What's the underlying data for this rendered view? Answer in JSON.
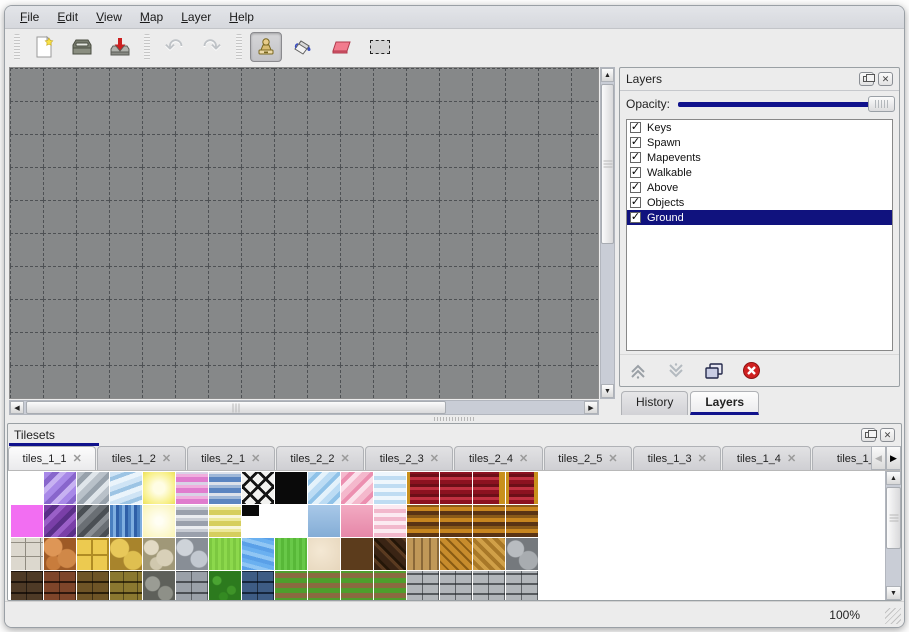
{
  "menu_bar": {
    "items": [
      {
        "label": "File"
      },
      {
        "label": "Edit"
      },
      {
        "label": "View"
      },
      {
        "label": "Map"
      },
      {
        "label": "Layer"
      },
      {
        "label": "Help"
      }
    ]
  },
  "toolbar": {
    "buttons": [
      {
        "icon": "new-file-icon"
      },
      {
        "icon": "open-icon"
      },
      {
        "icon": "save-icon"
      },
      {
        "icon": "undo-icon",
        "glyph": "↶"
      },
      {
        "icon": "redo-icon",
        "glyph": "↷"
      },
      {
        "icon": "stamp-tool-icon",
        "selected": true
      },
      {
        "icon": "fill-tool-icon"
      },
      {
        "icon": "eraser-tool-icon"
      },
      {
        "icon": "select-tool-icon"
      }
    ]
  },
  "canvas": {
    "grid_cols": 19,
    "grid_rows": 11,
    "background": "#868889",
    "grid_color": "#4e5154"
  },
  "layers_panel": {
    "title": "Layers",
    "opacity_label": "Opacity:",
    "opacity_value": 100,
    "accent_color": "#10128c",
    "layers": [
      {
        "name": "Keys",
        "checked": true,
        "selected": false
      },
      {
        "name": "Spawn",
        "checked": true,
        "selected": false
      },
      {
        "name": "Mapevents",
        "checked": true,
        "selected": false
      },
      {
        "name": "Walkable",
        "checked": true,
        "selected": false
      },
      {
        "name": "Above",
        "checked": true,
        "selected": false
      },
      {
        "name": "Objects",
        "checked": true,
        "selected": false
      },
      {
        "name": "Ground",
        "checked": true,
        "selected": true
      }
    ],
    "toolbar_icons": [
      "move-layer-up-icon",
      "move-layer-down-icon",
      "duplicate-layer-icon",
      "delete-layer-icon"
    ],
    "tabs": [
      {
        "label": "History",
        "active": false
      },
      {
        "label": "Layers",
        "active": true
      }
    ]
  },
  "tilesets_panel": {
    "title": "Tilesets",
    "tabs": [
      {
        "label": "tiles_1_1",
        "active": true
      },
      {
        "label": "tiles_1_2",
        "active": false
      },
      {
        "label": "tiles_2_1",
        "active": false
      },
      {
        "label": "tiles_2_2",
        "active": false
      },
      {
        "label": "tiles_2_3",
        "active": false
      },
      {
        "label": "tiles_2_4",
        "active": false
      },
      {
        "label": "tiles_2_5",
        "active": false
      },
      {
        "label": "tiles_1_3",
        "active": false
      },
      {
        "label": "tiles_1_4",
        "active": false
      },
      {
        "label": "tiles_1_",
        "active": false,
        "truncated": true
      }
    ]
  },
  "tile_palette": {
    "rows": [
      [
        {
          "name": "empty-white",
          "bg": "#ffffff"
        },
        {
          "name": "purple-glass",
          "bg": "repeating-linear-gradient(135deg,#a889e8 0 6px,#8866cc 6px 11px,#c7b2f2 11px 16px)"
        },
        {
          "name": "gray-glass",
          "bg": "repeating-linear-gradient(135deg,#b9c1c9 0 6px,#97a1ab 6px 11px,#dfe5ea 11px 16px)"
        },
        {
          "name": "blue-glass",
          "bg": "repeating-linear-gradient(160deg,#cfe4f5 0 5px,#9cc4e4 5px 9px,#eaf4fb 9px 14px)"
        },
        {
          "name": "yellow-glow",
          "bg": "radial-gradient(circle,#fffde4 25%,#f7ef84 75%,#ece05a 100%)"
        },
        {
          "name": "pink-stripes",
          "bg": "repeating-linear-gradient(0deg,#e07cce 0 5px,#f0aede 5px 8px,#d9d2e6 8px 11px)"
        },
        {
          "name": "blue-stripes",
          "bg": "repeating-linear-gradient(0deg,#5b85c0 0 5px,#9fb8d8 5px 8px,#dde2ea 8px 11px)"
        },
        {
          "name": "black-lattice",
          "bg": "repeating-linear-gradient(45deg,#141414 0 3px,transparent 3px 11px),repeating-linear-gradient(-45deg,#141414 0 3px,transparent 3px 11px)",
          "base": "#f2f2f0"
        },
        {
          "name": "solid-black",
          "bg": "#0a0a0a"
        },
        {
          "name": "lightblue-glass",
          "bg": "repeating-linear-gradient(135deg,#bcdcf4 0 6px,#8fc2e8 6px 10px,#e4f2fb 10px 15px)"
        },
        {
          "name": "pink-glass",
          "bg": "repeating-linear-gradient(135deg,#f4b8cc 0 6px,#ec8fb0 6px 10px,#fbe0ea 10px 15px)"
        },
        {
          "name": "blue-waves",
          "bg": "repeating-linear-gradient(0deg,#bfdcf2 0 4px,#eef6fc 4px 8px)"
        },
        {
          "name": "red-curtain",
          "bg": "linear-gradient(90deg,#c8901c 0 3px,transparent 3px),repeating-linear-gradient(0deg,#8c1220 0 4px,#c03040 4px 7px,#6c0f18 7px 10px)"
        },
        {
          "name": "red-curtain",
          "bg": "repeating-linear-gradient(0deg,#8c1220 0 4px,#c03040 4px 7px,#6c0f18 7px 10px)"
        },
        {
          "name": "red-curtain",
          "bg": "linear-gradient(90deg,transparent 0 26px,#c8901c 26px),repeating-linear-gradient(0deg,#8c1220 0 4px,#c03040 4px 7px,#6c0f18 7px 10px)"
        },
        {
          "name": "red-curtain",
          "bg": "linear-gradient(90deg,#c8901c 0 3px,transparent 3px 28px,#c8901c 28px),repeating-linear-gradient(0deg,#8c1220 0 4px,#c03040 4px 7px,#6c0f18 7px 10px)"
        }
      ],
      [
        {
          "name": "magenta",
          "bg": "#f26ef2"
        },
        {
          "name": "dark-purple-glass",
          "bg": "repeating-linear-gradient(135deg,#7a3fa8 0 6px,#5a2f88 6px 11px,#9a5fc8 11px 16px)"
        },
        {
          "name": "dark-gray-glass",
          "bg": "repeating-linear-gradient(135deg,#6a6f74 0 6px,#4a4f54 6px 11px,#8a8f94 11px 16px)"
        },
        {
          "name": "dark-blue-water",
          "bg": "repeating-linear-gradient(90deg,#4a7fc0 0 3px,#7faee0 3px 6px,#2f5fa8 6px 9px)"
        },
        {
          "name": "pale-yellow-glow",
          "bg": "radial-gradient(circle,#fffef4 15%,#faf4b4 100%)"
        },
        {
          "name": "gray-stripes",
          "bg": "repeating-linear-gradient(0deg,#9aa0ac 0 5px,#c8ccd4 5px 8px,#eaecf0 8px 11px)"
        },
        {
          "name": "yellow-stripes",
          "bg": "repeating-linear-gradient(0deg,#d6ce5e 0 5px,#ece89a 5px 8px,#f8f6da 8px 11px)"
        },
        {
          "name": "black-corner",
          "bg": "linear-gradient(#0a0a0a,#0a0a0a) 0 0/17px 11px no-repeat",
          "base": "#ffffff"
        },
        {
          "name": "empty-white",
          "bg": "#ffffff"
        },
        {
          "name": "solid-blue",
          "bg": "linear-gradient(180deg,#a8c8e8,#84add6)"
        },
        {
          "name": "solid-pink",
          "bg": "linear-gradient(180deg,#f2aac2,#e687a8)"
        },
        {
          "name": "pink-waves",
          "bg": "repeating-linear-gradient(0deg,#f2b8cc 0 4px,#fceaf1 4px 8px)"
        },
        {
          "name": "brown-stripes",
          "bg": "repeating-linear-gradient(0deg,#5a3414 0 4px,#c8861f 4px 8px,#8a5a18 8px 11px)"
        },
        {
          "name": "brown-stripes",
          "bg": "repeating-linear-gradient(0deg,#5a3414 0 4px,#c8861f 4px 8px,#8a5a18 8px 11px)"
        },
        {
          "name": "brown-stripes",
          "bg": "repeating-linear-gradient(0deg,#5a3414 0 4px,#c8861f 4px 8px,#8a5a18 8px 11px)"
        },
        {
          "name": "brown-stripes",
          "bg": "repeating-linear-gradient(0deg,#5a3414 0 4px,#c8861f 4px 8px,#8a5a18 8px 11px)"
        }
      ],
      [
        {
          "name": "white-stone-blocks",
          "bg": "repeating-linear-gradient(90deg,transparent 0 14px,#8f8b80 14px 15px),repeating-linear-gradient(0deg,#dcd8ce 0 13px,#938f84 13px 14px)",
          "base": "#d9d5cb"
        },
        {
          "name": "orange-cobbles",
          "bg": "radial-gradient(circle at 28% 28%,#de9656 9px,transparent 10px),radial-gradient(circle at 72% 64%,#d08848 9px,transparent 10px),radial-gradient(circle at 30% 78%,#c87c3c 7px,transparent 8px)",
          "base": "#9e5a26"
        },
        {
          "name": "yellow-tile-squares",
          "bg": "repeating-linear-gradient(90deg,transparent 0 14px,#b08c24 14px 16px),repeating-linear-gradient(0deg,#ecca50 0 14px,#b08c24 14px 16px)",
          "base": "#e4c044"
        },
        {
          "name": "yellow-stones",
          "bg": "radial-gradient(circle at 30% 32%,#e8c85a 9px,transparent 10px),radial-gradient(circle at 72% 70%,#dfbf50 9px,transparent 10px)",
          "base": "#a8842c"
        },
        {
          "name": "beige-pebbles",
          "bg": "radial-gradient(circle at 26% 30%,#e2dac4 7px,transparent 8px),radial-gradient(circle at 68% 62%,#d8d0b8 8px,transparent 9px),radial-gradient(circle at 42% 80%,#d0c8ae 6px,transparent 7px)",
          "base": "#a09878"
        },
        {
          "name": "gray-pebbles",
          "bg": "radial-gradient(circle at 28% 30%,#ced3d9 8px,transparent 9px),radial-gradient(circle at 72% 66%,#c2c8d0 8px,transparent 9px)",
          "base": "#888e96"
        },
        {
          "name": "bright-grass",
          "bg": "repeating-linear-gradient(90deg,#7cc840 0 3px,#8cd84c 3px 6px)"
        },
        {
          "name": "water",
          "bg": "repeating-linear-gradient(15deg,#5aa0e8 0 4px,#90c6f4 4px 8px,#6ab0f0 8px 12px)"
        },
        {
          "name": "grass",
          "bg": "repeating-linear-gradient(90deg,#58b838 0 3px,#68c848 3px 6px)"
        },
        {
          "name": "sand",
          "bg": "radial-gradient(circle at 40% 40%,#f4e8d4,#e6d6bc)"
        },
        {
          "name": "brown-gravel",
          "bg": "radial-gradient(circle at 28% 30%,#8a5c30 5px,transparent 6px),radial-gradient(circle at 66% 68%,#7a4c24 5px,transparent 6px),radial-gradient(circle at 74% 24%,#94halt 0,transparent 0)",
          "base": "#5c3c1c"
        },
        {
          "name": "dark-shingles",
          "bg": "repeating-linear-gradient(45deg,#3a2414 0 6px,#5a3a20 6px 9px,#241608 9px 12px)"
        },
        {
          "name": "wood-planks",
          "bg": "repeating-linear-gradient(90deg,#c09858 0 6px,#8a6838 6px 8px)"
        },
        {
          "name": "basket-weave",
          "bg": "repeating-linear-gradient(45deg,#c88c2c 0 5px,#8a5c14 5px 7px),repeating-linear-gradient(-45deg,rgba(255,220,140,.45) 0 5px,transparent 5px 10px)",
          "base": "#a87424"
        },
        {
          "name": "herringbone-wood",
          "bg": "repeating-linear-gradient(45deg,#d0a048 0 4px,#a87828 4px 8px),repeating-linear-gradient(-45deg,rgba(60,40,10,.25) 0 4px,transparent 4px 8px)"
        },
        {
          "name": "gray-stone-pile",
          "bg": "radial-gradient(circle at 30% 34%,#b8bcc0 8px,transparent 9px),radial-gradient(circle at 70% 70%,#a8acb0 9px,transparent 10px)",
          "base": "#75797d"
        }
      ],
      [
        {
          "name": "dark-brown-bricks",
          "bg": "repeating-linear-gradient(90deg,transparent 0 15px,rgba(0,0,0,.5) 15px 16px),repeating-linear-gradient(0deg,#4e3a26 0 9px,#1e140c 9px 11px)"
        },
        {
          "name": "red-bricks",
          "bg": "repeating-linear-gradient(90deg,transparent 0 15px,rgba(0,0,0,.45) 15px 16px),repeating-linear-gradient(0deg,#7e452a 0 9px,#2e160c 9px 11px)"
        },
        {
          "name": "brown-bricks",
          "bg": "repeating-linear-gradient(90deg,transparent 0 15px,rgba(0,0,0,.45) 15px 16px),repeating-linear-gradient(0deg,#6e5426 0 9px,#2a1e0a 9px 11px)"
        },
        {
          "name": "yellow-stone-bricks",
          "bg": "repeating-linear-gradient(90deg,transparent 0 13px,rgba(0,0,0,.4) 13px 14px),repeating-linear-gradient(0deg,#8a7830 0 9px,#3a300e 9px 11px)"
        },
        {
          "name": "gray-stone-wall",
          "bg": "radial-gradient(circle at 30% 40%,#9a9c94 7px,transparent 8px),radial-gradient(circle at 70% 70%,#8e9088 7px,transparent 8px)",
          "base": "#5e605a"
        },
        {
          "name": "gray-bricks",
          "bg": "repeating-linear-gradient(90deg,transparent 0 15px,rgba(0,0,0,.4) 15px 16px),repeating-linear-gradient(0deg,#9aa0a8 0 9px,#4a4e54 9px 11px)"
        },
        {
          "name": "green-hedge",
          "bg": "radial-gradient(circle at 25% 30%,#4aa432 4px,transparent 5px),radial-gradient(circle at 70% 60%,#3e9428 4px,transparent 5px),radial-gradient(circle at 45% 80%,#348a22 4px,transparent 5px)",
          "base": "#2c7a1e"
        },
        {
          "name": "blue-bricks",
          "bg": "repeating-linear-gradient(90deg,transparent 0 15px,rgba(0,0,0,.5) 15px 16px),repeating-linear-gradient(0deg,#3e5c84 0 9px,#16263c 9px 11px)"
        },
        {
          "name": "grass-dirt-rows",
          "bg": "repeating-linear-gradient(0deg,#4e9e2c 0 5px,#8a6a40 5px 10px)"
        },
        {
          "name": "grass-dirt-rows",
          "bg": "repeating-linear-gradient(0deg,#4e9e2c 0 5px,#8a6a40 5px 10px)"
        },
        {
          "name": "grass-dirt-rows",
          "bg": "repeating-linear-gradient(0deg,#4e9e2c 0 5px,#8a6a40 5px 10px)"
        },
        {
          "name": "grass-dirt-rows",
          "bg": "repeating-linear-gradient(0deg,#4e9e2c 0 5px,#8a6a40 5px 10px)"
        },
        {
          "name": "gray-stone-bricks",
          "bg": "repeating-linear-gradient(90deg,transparent 0 15px,rgba(40,44,48,.6) 15px 16px),repeating-linear-gradient(0deg,#b2b6ba 0 8px,#565a5e 8px 10px)"
        },
        {
          "name": "gray-stone-bricks",
          "bg": "repeating-linear-gradient(90deg,transparent 0 15px,rgba(40,44,48,.6) 15px 16px),repeating-linear-gradient(0deg,#b2b6ba 0 8px,#565a5e 8px 10px)"
        },
        {
          "name": "gray-stone-bricks",
          "bg": "repeating-linear-gradient(90deg,transparent 0 15px,rgba(40,44,48,.6) 15px 16px),repeating-linear-gradient(0deg,#b2b6ba 0 8px,#565a5e 8px 10px)"
        },
        {
          "name": "gray-stone-bricks",
          "bg": "repeating-linear-gradient(90deg,transparent 0 15px,rgba(40,44,48,.6) 15px 16px),repeating-linear-gradient(0deg,#b2b6ba 0 8px,#565a5e 8px 10px)"
        }
      ]
    ]
  },
  "status_bar": {
    "zoom": "100%"
  }
}
